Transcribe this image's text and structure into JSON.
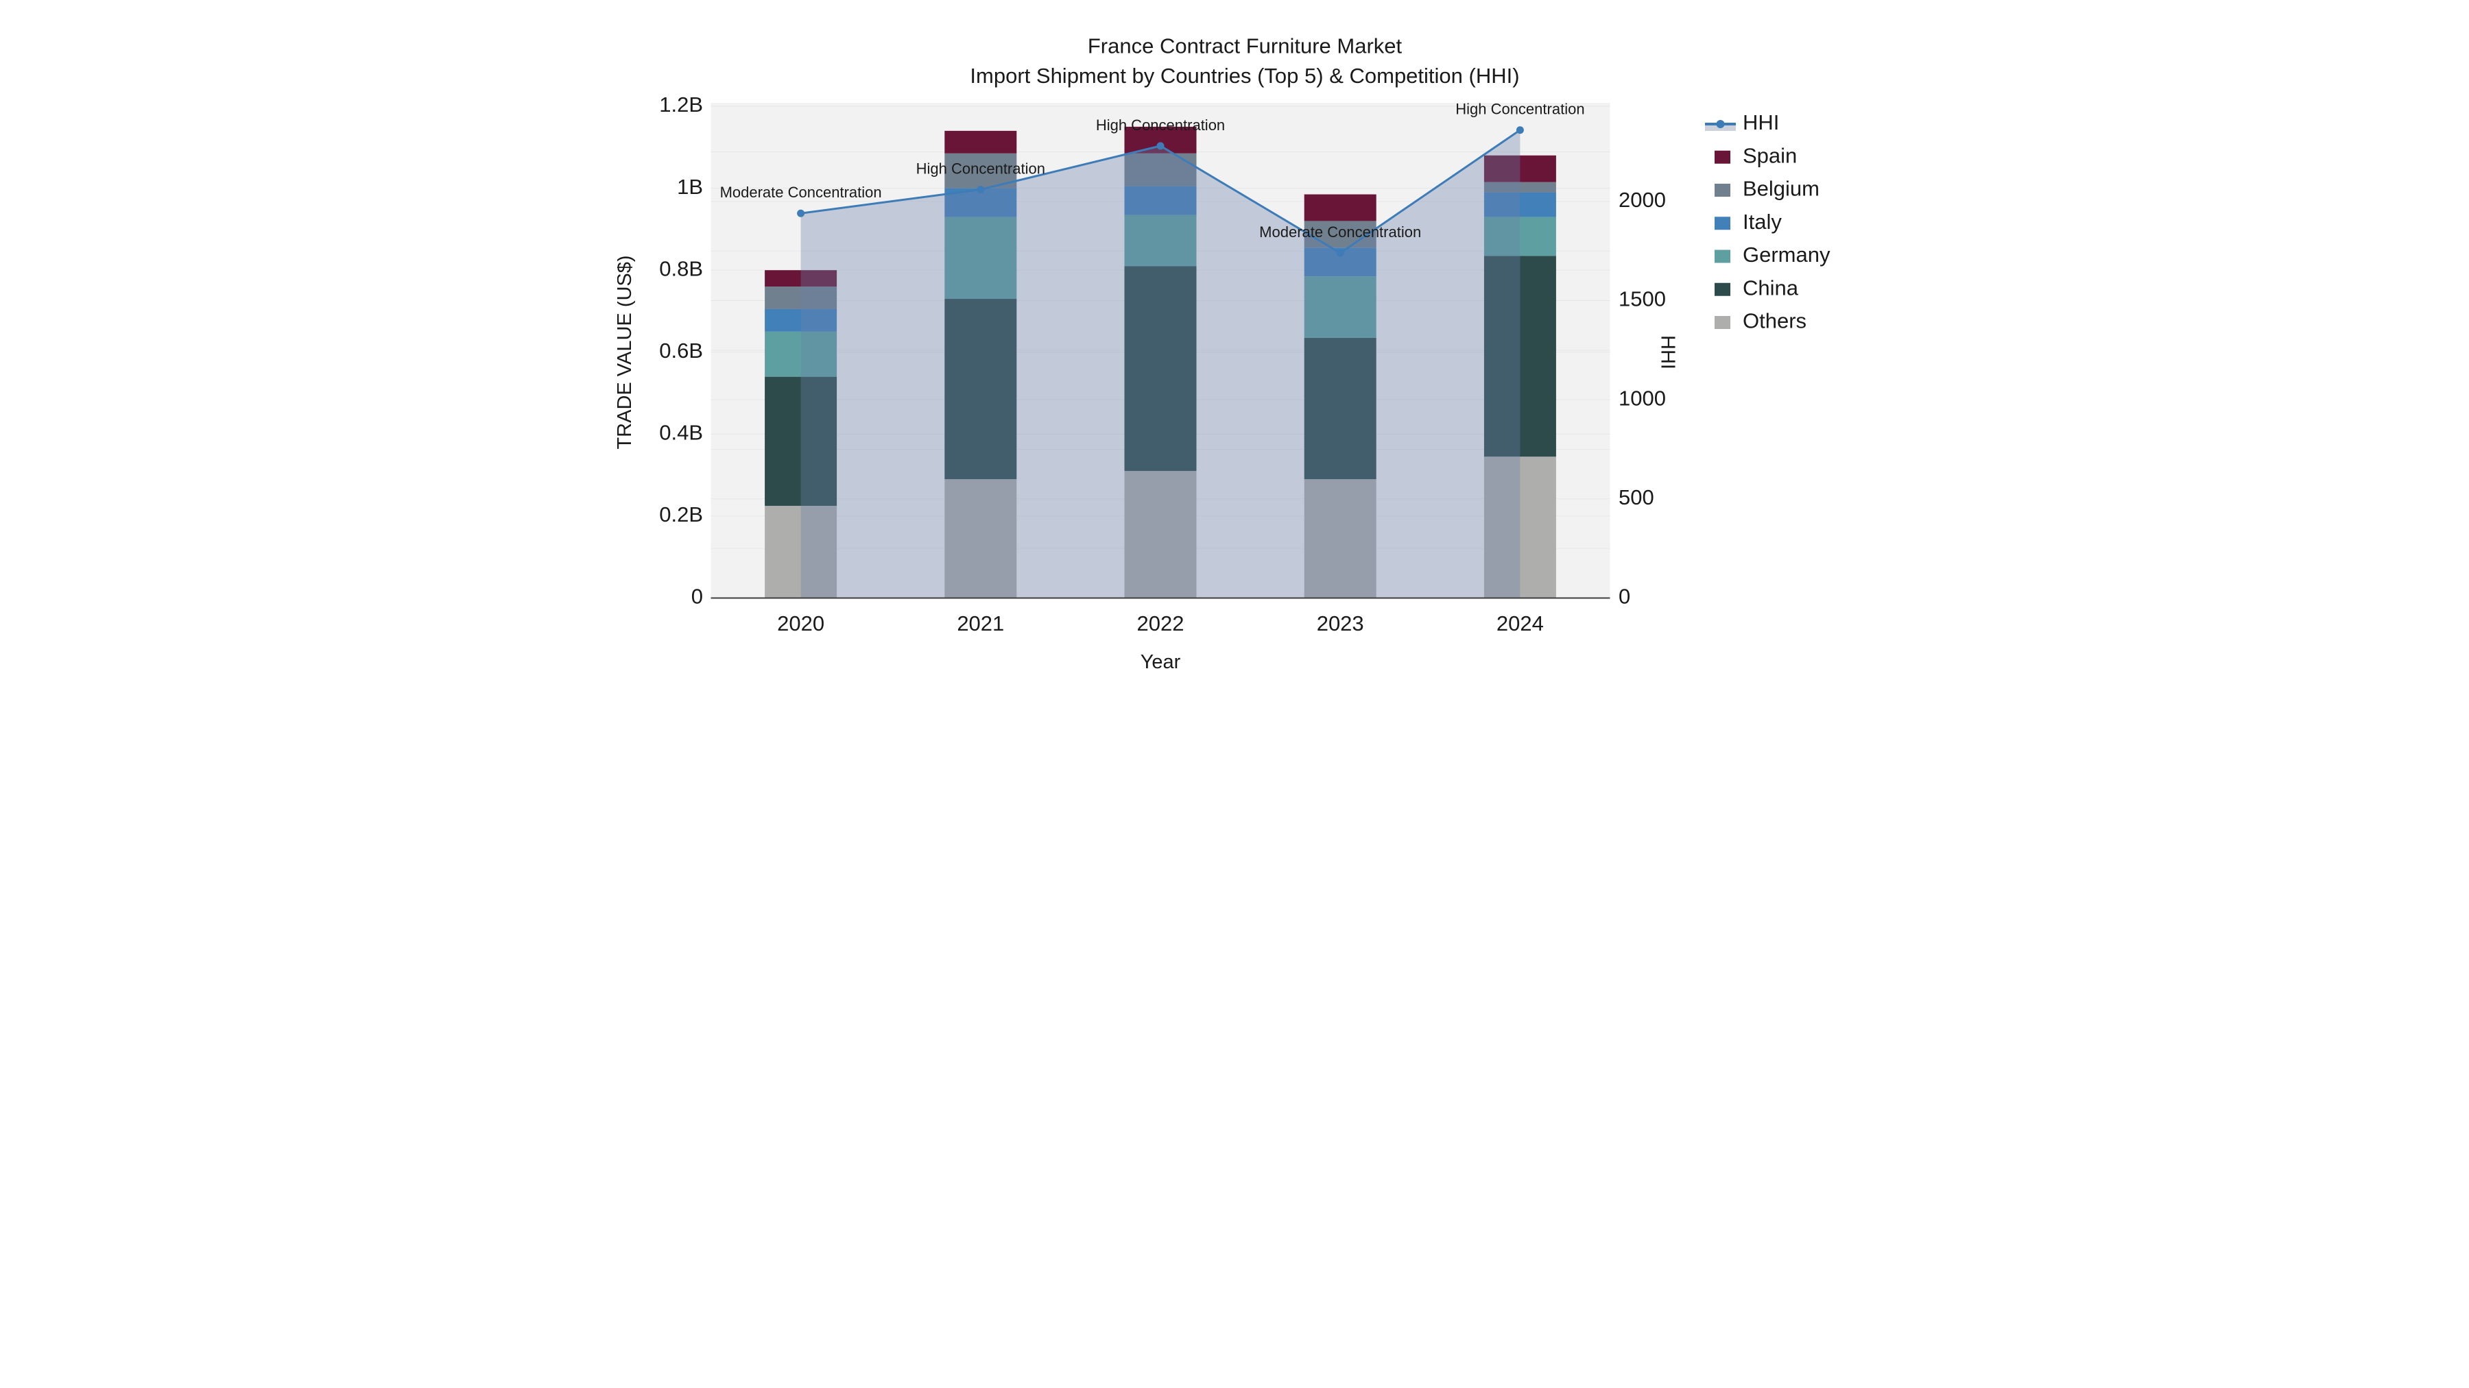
{
  "title": {
    "line1": "France Contract Furniture Market",
    "line2": "Import Shipment by Countries (Top 5) & Competition (HHI)"
  },
  "chart_data": {
    "type": "combo: stacked-bar + area-line",
    "title": "France Contract Furniture Market — Import Shipment by Countries (Top 5) & Competition (HHI)",
    "categories": [
      "2020",
      "2021",
      "2022",
      "2023",
      "2024"
    ],
    "xlabel": "Year",
    "bar_axis": {
      "label": "TRADE VALUE (US$)",
      "unit": "billion USD",
      "tick_values": [
        0,
        0.2,
        0.4,
        0.6,
        0.8,
        1.0,
        1.2
      ],
      "tick_labels": [
        "0",
        "0.2B",
        "0.4B",
        "0.6B",
        "0.8B",
        "1B",
        "1.2B"
      ],
      "range": [
        0,
        1.2
      ],
      "grid": true
    },
    "hhi_axis": {
      "label": "HHI",
      "tick_values": [
        0,
        500,
        1000,
        1500,
        2000
      ],
      "tick_labels": [
        "0",
        "500",
        "1000",
        "1500",
        "2000"
      ],
      "range": [
        0,
        2480
      ],
      "minor_grid_step": 250,
      "grid": true
    },
    "series": [
      {
        "name": "Others",
        "color": "#AEAEAC",
        "values": [
          0.225,
          0.29,
          0.31,
          0.29,
          0.345
        ]
      },
      {
        "name": "China",
        "color": "#2D4B4A",
        "values": [
          0.315,
          0.44,
          0.5,
          0.345,
          0.49
        ]
      },
      {
        "name": "Germany",
        "color": "#5EA0A2",
        "values": [
          0.11,
          0.2,
          0.125,
          0.15,
          0.095
        ]
      },
      {
        "name": "Italy",
        "color": "#4280BA",
        "values": [
          0.055,
          0.07,
          0.07,
          0.07,
          0.06
        ]
      },
      {
        "name": "Belgium",
        "color": "#70808F",
        "values": [
          0.055,
          0.085,
          0.08,
          0.065,
          0.025
        ]
      },
      {
        "name": "Spain",
        "color": "#681537",
        "values": [
          0.04,
          0.055,
          0.065,
          0.065,
          0.065
        ]
      }
    ],
    "bar_totals": [
      0.8,
      1.14,
      1.15,
      0.985,
      1.08
    ],
    "line_series": {
      "name": "HHI",
      "color": "#3E7CB8",
      "area_fill": "rgba(105,128,168,0.35)",
      "values": [
        1940,
        2060,
        2280,
        1740,
        2360
      ],
      "annotations": [
        "Moderate Concentration",
        "High Concentration",
        "High Concentration",
        "Moderate Concentration",
        "High Concentration"
      ]
    },
    "legend_position": "right"
  },
  "legend": {
    "items": [
      {
        "label": "HHI",
        "type": "line",
        "color": "#3E7CB8",
        "band_color": "#CCD1DA"
      },
      {
        "label": "Spain",
        "type": "swatch",
        "color": "#681537"
      },
      {
        "label": "Belgium",
        "type": "swatch",
        "color": "#70808F"
      },
      {
        "label": "Italy",
        "type": "swatch",
        "color": "#4280BA"
      },
      {
        "label": "Germany",
        "type": "swatch",
        "color": "#5EA0A2"
      },
      {
        "label": "China",
        "type": "swatch",
        "color": "#2D4B4A"
      },
      {
        "label": "Others",
        "type": "swatch",
        "color": "#AEAEAC"
      }
    ]
  },
  "colors": {
    "plot_bg": "#F2F2F3",
    "grid": "#E6E7E9",
    "axis_line": "#3F3F3F",
    "text": "#1A1A1A"
  }
}
